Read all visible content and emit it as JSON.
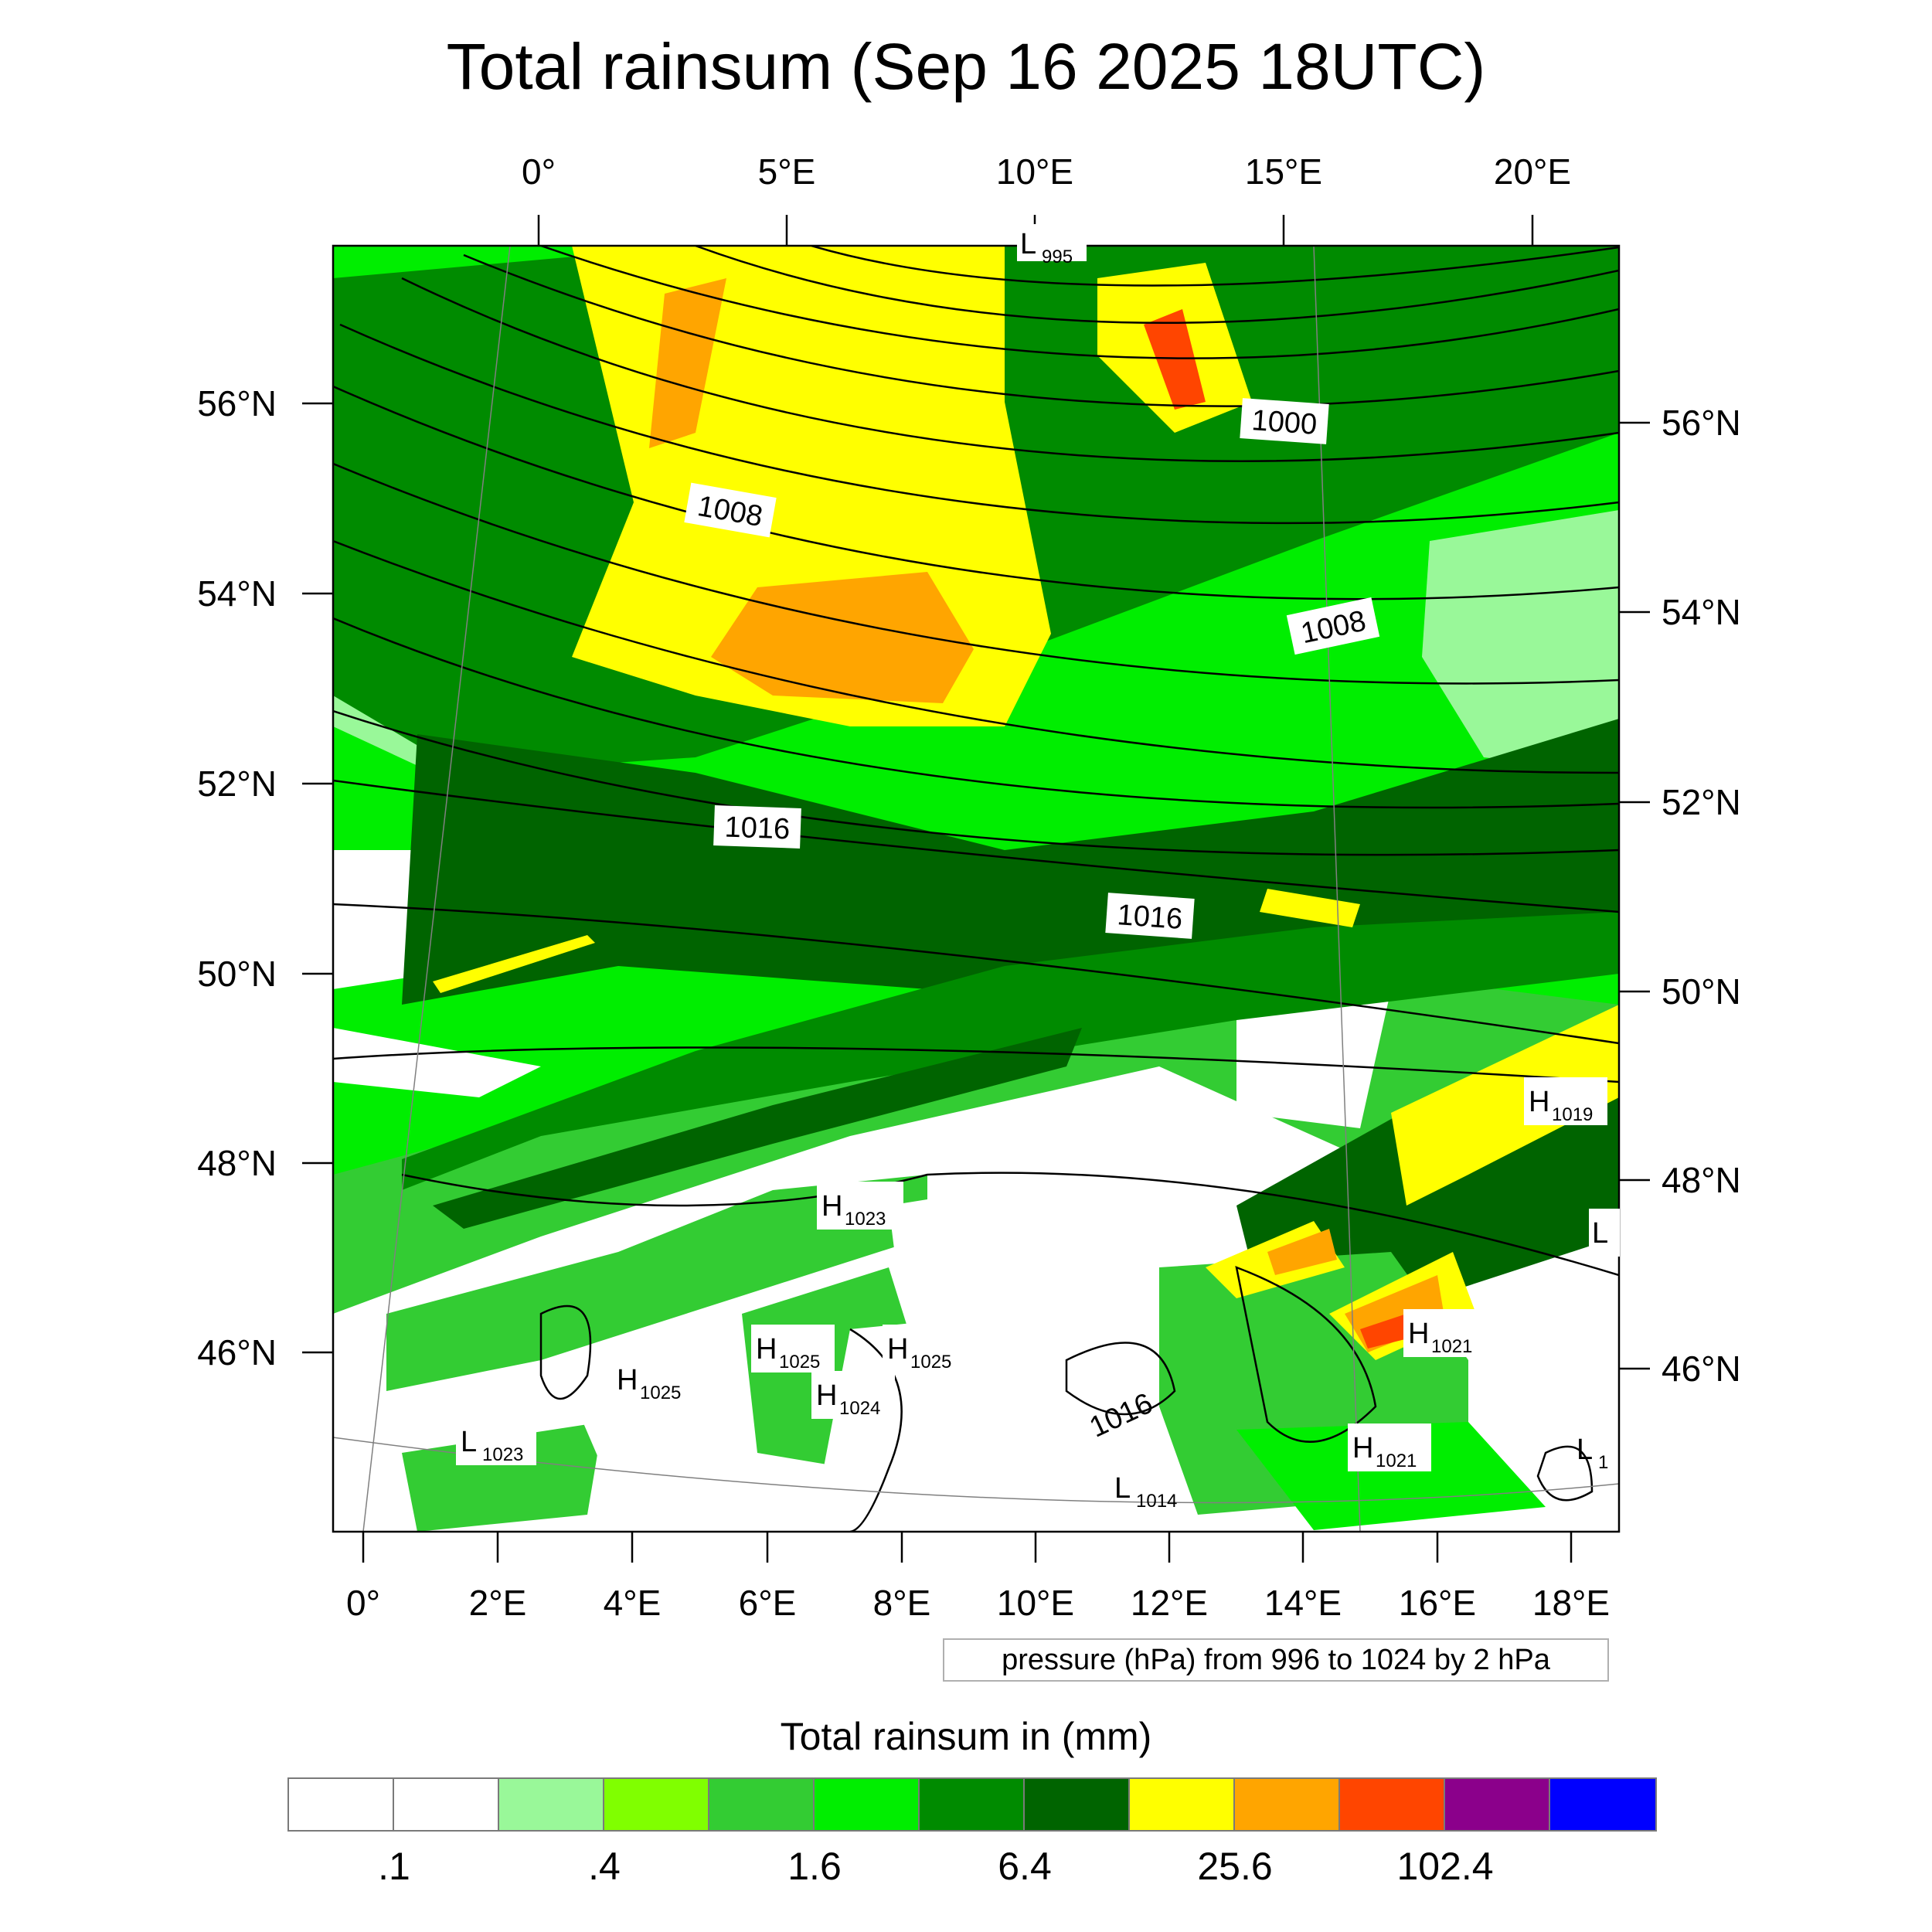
{
  "title": "Total rainsum (Sep 16 2025 18UTC)",
  "map": {
    "top_lon_labels": [
      "0°",
      "5°E",
      "10°E",
      "15°E",
      "20°E"
    ],
    "bottom_lon_labels": [
      "0°",
      "2°E",
      "4°E",
      "6°E",
      "8°E",
      "10°E",
      "12°E",
      "14°E",
      "16°E",
      "18°E"
    ],
    "left_lat_labels": [
      "56°N",
      "54°N",
      "52°N",
      "50°N",
      "48°N",
      "46°N"
    ],
    "right_lat_labels": [
      "56°N",
      "54°N",
      "52°N",
      "50°N",
      "48°N",
      "46°N"
    ],
    "isobar_labels": [
      "1000",
      "1008",
      "1008",
      "1016",
      "1016",
      "1016"
    ],
    "pressure_centers": [
      {
        "type": "L",
        "value": "995"
      },
      {
        "type": "H",
        "value": "1019"
      },
      {
        "type": "L",
        "value": ""
      },
      {
        "type": "H",
        "value": "1023"
      },
      {
        "type": "H",
        "value": "1021"
      },
      {
        "type": "H",
        "value": "1025"
      },
      {
        "type": "H",
        "value": "1025"
      },
      {
        "type": "H",
        "value": "1025"
      },
      {
        "type": "H",
        "value": "1024"
      },
      {
        "type": "L",
        "value": "1023"
      },
      {
        "type": "H",
        "value": "1021"
      },
      {
        "type": "L",
        "value": "1014"
      },
      {
        "type": "L",
        "value": "1"
      }
    ]
  },
  "contour_info": "pressure (hPa) from 996 to 1024 by 2 hPa",
  "colorbar": {
    "title": "Total rainsum in (mm)",
    "colors": [
      "#ffffff",
      "#ffffff",
      "#99f899",
      "#80ff00",
      "#33cc33",
      "#00ee00",
      "#008b00",
      "#006400",
      "#ffff00",
      "#ffa500",
      "#ff4500",
      "#8b008b",
      "#0000ff"
    ],
    "labels": [
      ".1",
      ".4",
      "1.6",
      "6.4",
      "25.6",
      "102.4"
    ]
  }
}
